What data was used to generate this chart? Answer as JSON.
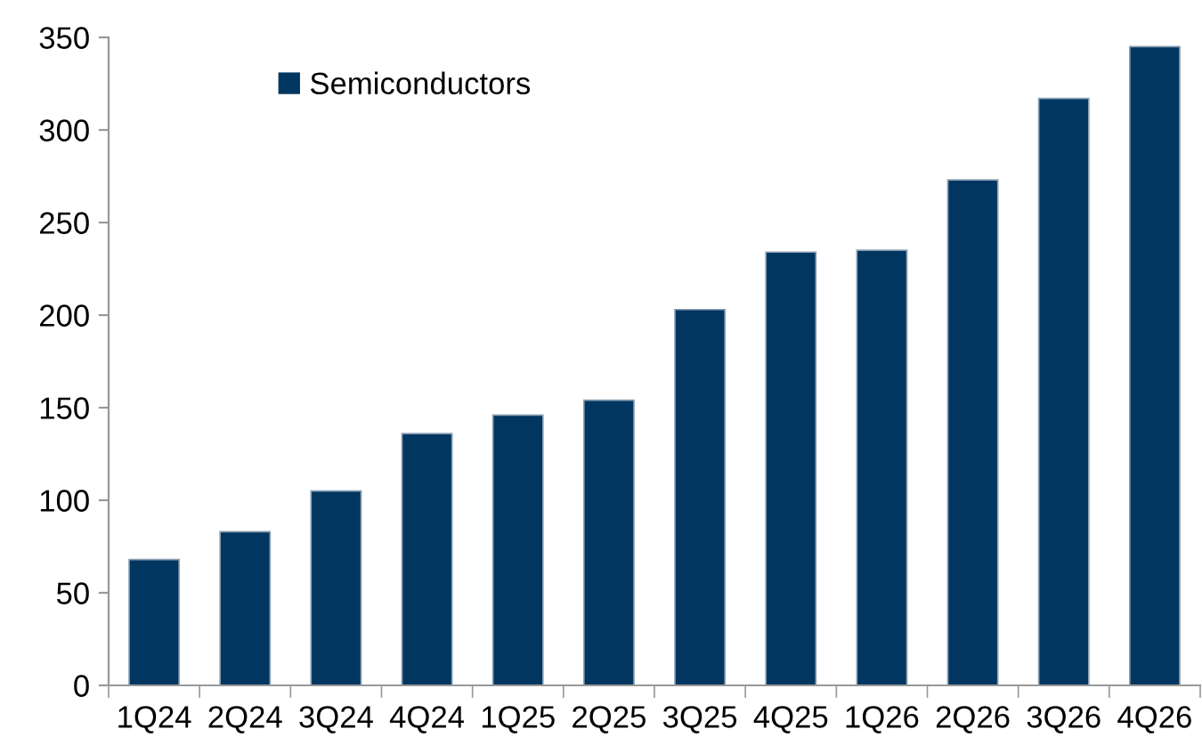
{
  "chart_data": {
    "type": "bar",
    "categories": [
      "1Q24",
      "2Q24",
      "3Q24",
      "4Q24",
      "1Q25",
      "2Q25",
      "3Q25",
      "4Q25",
      "1Q26",
      "2Q26",
      "3Q26",
      "4Q26"
    ],
    "series": [
      {
        "name": "Semiconductors",
        "color": "#003660",
        "values": [
          68,
          83,
          105,
          136,
          146,
          154,
          203,
          234,
          235,
          273,
          317,
          345
        ]
      }
    ],
    "ylim": [
      0,
      350
    ],
    "yticks": [
      0,
      50,
      100,
      150,
      200,
      250,
      300,
      350
    ],
    "grid": false,
    "legend": "top left"
  }
}
